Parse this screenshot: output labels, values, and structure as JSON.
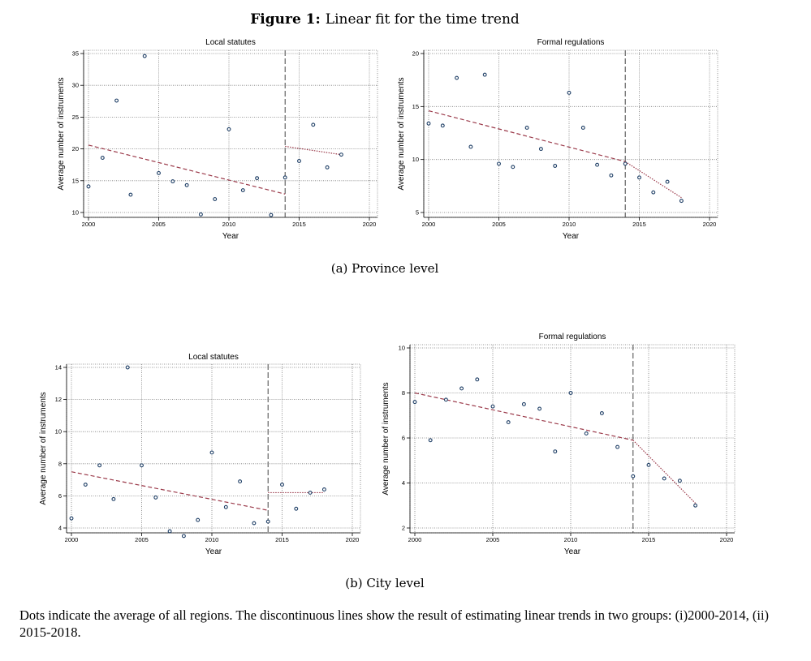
{
  "figure": {
    "label": "Figure 1:",
    "title": "Linear fit for the time trend"
  },
  "subcaptions": {
    "province": "(a) Province level",
    "city": "(b) City level"
  },
  "note": "Dots indicate the average of all regions. The discontinuous lines show the result of estimating linear trends in two groups: (i)2000-2014, (ii) 2015-2018.",
  "colors": {
    "trend": "#9b3a4a",
    "marker": "#1f3f66",
    "grid": "#7a7a7a",
    "break_line": "#444444"
  },
  "chart_data": [
    {
      "type": "scatter",
      "panel": "province-local",
      "title": "Local statutes",
      "xlabel": "Year",
      "ylabel": "Average number of instruments",
      "xlim": [
        2000,
        2020
      ],
      "ylim": [
        10,
        35
      ],
      "xticks": [
        2000,
        2005,
        2010,
        2015,
        2020
      ],
      "yticks": [
        10,
        15,
        20,
        25,
        30,
        35
      ],
      "break_year": 2014,
      "points": [
        [
          2000,
          14.1
        ],
        [
          2001,
          18.6
        ],
        [
          2002,
          27.6
        ],
        [
          2003,
          12.8
        ],
        [
          2004,
          34.6
        ],
        [
          2005,
          16.2
        ],
        [
          2006,
          14.9
        ],
        [
          2007,
          14.3
        ],
        [
          2008,
          9.7
        ],
        [
          2009,
          12.1
        ],
        [
          2010,
          23.1
        ],
        [
          2011,
          13.5
        ],
        [
          2012,
          15.4
        ],
        [
          2013,
          9.6
        ],
        [
          2014,
          15.5
        ],
        [
          2015,
          18.1
        ],
        [
          2016,
          23.8
        ],
        [
          2017,
          17.1
        ],
        [
          2018,
          19.1
        ]
      ],
      "fits": [
        {
          "period": "2000-2014",
          "x": [
            2000,
            2014
          ],
          "y": [
            20.6,
            12.9
          ],
          "style": "dashed"
        },
        {
          "period": "2015-2018",
          "x": [
            2014,
            2018
          ],
          "y": [
            20.4,
            19.1
          ],
          "style": "dotted"
        }
      ]
    },
    {
      "type": "scatter",
      "panel": "province-formal",
      "title": "Formal regulations",
      "xlabel": "Year",
      "ylabel": "Average number of instruments",
      "xlim": [
        2000,
        2020
      ],
      "ylim": [
        5,
        20
      ],
      "xticks": [
        2000,
        2005,
        2010,
        2015,
        2020
      ],
      "yticks": [
        5,
        10,
        15,
        20
      ],
      "break_year": 2014,
      "points": [
        [
          2000,
          13.4
        ],
        [
          2001,
          13.2
        ],
        [
          2002,
          17.7
        ],
        [
          2003,
          11.2
        ],
        [
          2004,
          18.0
        ],
        [
          2005,
          9.6
        ],
        [
          2006,
          9.3
        ],
        [
          2007,
          13.0
        ],
        [
          2008,
          11.0
        ],
        [
          2009,
          9.4
        ],
        [
          2010,
          16.3
        ],
        [
          2011,
          13.0
        ],
        [
          2012,
          9.5
        ],
        [
          2013,
          8.5
        ],
        [
          2014,
          9.6
        ],
        [
          2015,
          8.3
        ],
        [
          2016,
          6.9
        ],
        [
          2017,
          7.9
        ],
        [
          2018,
          6.1
        ]
      ],
      "fits": [
        {
          "period": "2000-2014",
          "x": [
            2000,
            2014
          ],
          "y": [
            14.6,
            9.8
          ],
          "style": "dashed"
        },
        {
          "period": "2015-2018",
          "x": [
            2014,
            2018
          ],
          "y": [
            9.8,
            6.4
          ],
          "style": "dotted"
        }
      ]
    },
    {
      "type": "scatter",
      "panel": "city-local",
      "title": "Local statutes",
      "xlabel": "Year",
      "ylabel": "Average number of instruments",
      "xlim": [
        2000,
        2020
      ],
      "ylim": [
        4,
        14
      ],
      "xticks": [
        2000,
        2005,
        2010,
        2015,
        2020
      ],
      "yticks": [
        4,
        6,
        8,
        10,
        12,
        14
      ],
      "break_year": 2014,
      "points": [
        [
          2000,
          4.6
        ],
        [
          2001,
          6.7
        ],
        [
          2002,
          7.9
        ],
        [
          2003,
          5.8
        ],
        [
          2004,
          14.0
        ],
        [
          2005,
          7.9
        ],
        [
          2006,
          5.9
        ],
        [
          2007,
          3.8
        ],
        [
          2008,
          3.5
        ],
        [
          2009,
          4.5
        ],
        [
          2010,
          8.7
        ],
        [
          2011,
          5.3
        ],
        [
          2012,
          6.9
        ],
        [
          2013,
          4.3
        ],
        [
          2014,
          4.4
        ],
        [
          2015,
          6.7
        ],
        [
          2016,
          5.2
        ],
        [
          2017,
          6.2
        ],
        [
          2018,
          6.4
        ]
      ],
      "fits": [
        {
          "period": "2000-2014",
          "x": [
            2000,
            2014
          ],
          "y": [
            7.5,
            5.1
          ],
          "style": "dashed"
        },
        {
          "period": "2015-2018",
          "x": [
            2014,
            2018
          ],
          "y": [
            6.2,
            6.2
          ],
          "style": "dotted"
        }
      ]
    },
    {
      "type": "scatter",
      "panel": "city-formal",
      "title": "Formal regulations",
      "xlabel": "Year",
      "ylabel": "Average number of instruments",
      "xlim": [
        2000,
        2020
      ],
      "ylim": [
        2,
        10
      ],
      "xticks": [
        2000,
        2005,
        2010,
        2015,
        2020
      ],
      "yticks": [
        2,
        4,
        6,
        8,
        10
      ],
      "break_year": 2014,
      "points": [
        [
          2000,
          7.6
        ],
        [
          2001,
          5.9
        ],
        [
          2002,
          7.7
        ],
        [
          2003,
          8.2
        ],
        [
          2004,
          8.6
        ],
        [
          2005,
          7.4
        ],
        [
          2006,
          6.7
        ],
        [
          2007,
          7.5
        ],
        [
          2008,
          7.3
        ],
        [
          2009,
          5.4
        ],
        [
          2010,
          8.0
        ],
        [
          2011,
          6.2
        ],
        [
          2012,
          7.1
        ],
        [
          2013,
          5.6
        ],
        [
          2014,
          4.3
        ],
        [
          2015,
          4.8
        ],
        [
          2016,
          4.2
        ],
        [
          2017,
          4.1
        ],
        [
          2018,
          3.0
        ]
      ],
      "fits": [
        {
          "period": "2000-2014",
          "x": [
            2000,
            2014
          ],
          "y": [
            8.0,
            5.9
          ],
          "style": "dashed"
        },
        {
          "period": "2015-2018",
          "x": [
            2014,
            2018
          ],
          "y": [
            5.9,
            3.1
          ],
          "style": "dotted"
        }
      ]
    }
  ]
}
